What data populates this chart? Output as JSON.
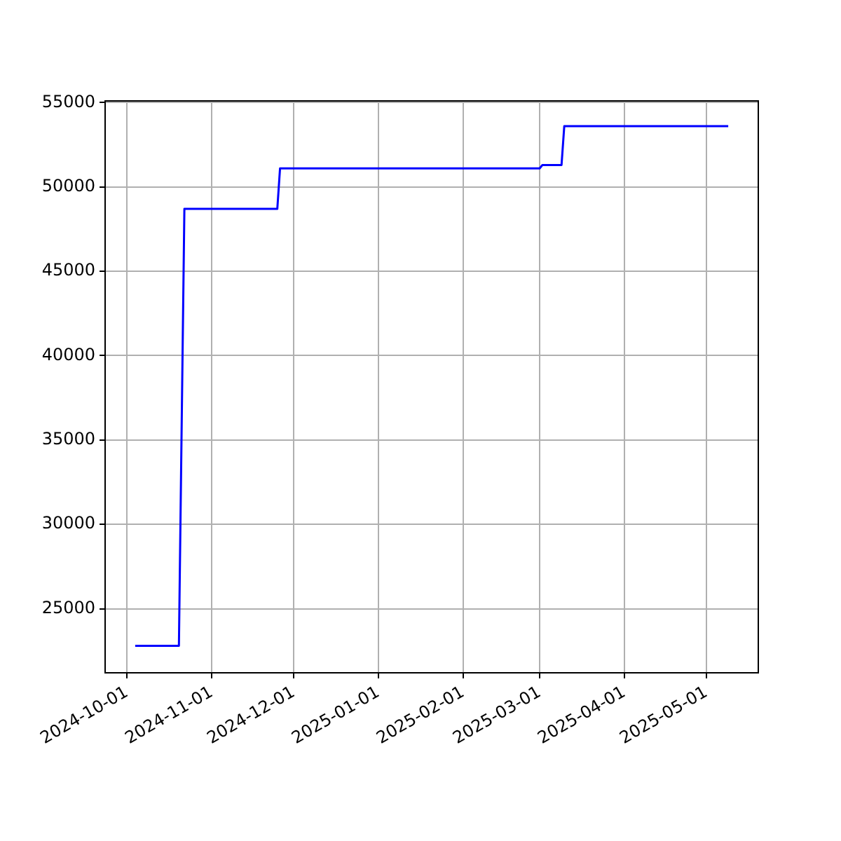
{
  "chart_data": {
    "type": "line",
    "x": [
      "2024-10-04",
      "2024-10-20",
      "2024-10-22",
      "2024-11-25",
      "2024-11-26",
      "2025-03-01",
      "2025-03-02",
      "2025-03-09",
      "2025-03-10",
      "2025-05-09"
    ],
    "series": [
      {
        "color": "#0000ff",
        "values": [
          22800,
          22800,
          48700,
          48700,
          51100,
          51100,
          51300,
          51300,
          53600,
          53600
        ]
      }
    ],
    "xlim": [
      "2024-09-23",
      "2025-05-20"
    ],
    "xticks": [
      "2024-10-01",
      "2024-11-01",
      "2024-12-01",
      "2025-01-01",
      "2025-02-01",
      "2025-03-01",
      "2025-04-01",
      "2025-05-01"
    ],
    "ylim": [
      21200,
      55100
    ],
    "yticks": [
      25000,
      30000,
      35000,
      40000,
      45000,
      50000,
      55000
    ],
    "grid": true,
    "legend": false,
    "marker": "none",
    "line_style": "solid"
  }
}
